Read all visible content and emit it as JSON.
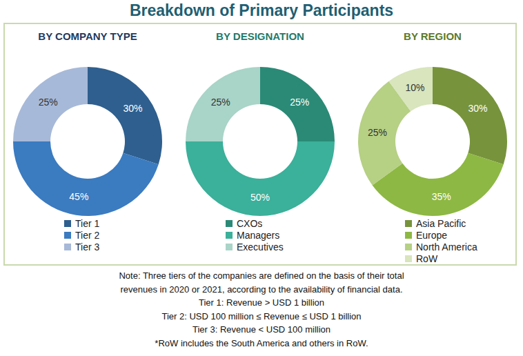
{
  "title": "Breakdown of Primary Participants",
  "chart_data": [
    {
      "type": "pie",
      "title": "BY COMPANY TYPE",
      "categories": [
        "Tier 1",
        "Tier 2",
        "Tier 3"
      ],
      "values": [
        30,
        45,
        25
      ],
      "value_labels": [
        "30%",
        "45%",
        "25%"
      ],
      "colors": [
        "#2e5f8f",
        "#3b7bc0",
        "#a7b9d8"
      ],
      "data_labels": true
    },
    {
      "type": "pie",
      "title": "BY DESIGNATION",
      "categories": [
        "CXOs",
        "Managers",
        "Executives"
      ],
      "values": [
        25,
        50,
        25
      ],
      "value_labels": [
        "25%",
        "50%",
        "25%"
      ],
      "colors": [
        "#2a8a76",
        "#3bb09a",
        "#a9d4c8"
      ],
      "data_labels": true
    },
    {
      "type": "pie",
      "title": "BY REGION",
      "categories": [
        "Asia Pacific",
        "Europe",
        "North America",
        "RoW"
      ],
      "values": [
        30,
        35,
        25,
        10
      ],
      "value_labels": [
        "30%",
        "35%",
        "25%",
        "10%"
      ],
      "colors": [
        "#77933c",
        "#8db843",
        "#b6d084",
        "#d8e5bd"
      ],
      "data_labels": true
    }
  ],
  "notes": [
    "Note: Three tiers of the companies are defined on the basis of their total",
    "revenues in 2020 or 2021, according to the availability of financial data.",
    "Tier 1: Revenue > USD 1 billion",
    "Tier 2: USD 100 million ≤ Revenue ≤ USD 1 billion",
    "Tier 3: Revenue < USD 100 million",
    "*RoW includes the South America and others in RoW."
  ]
}
